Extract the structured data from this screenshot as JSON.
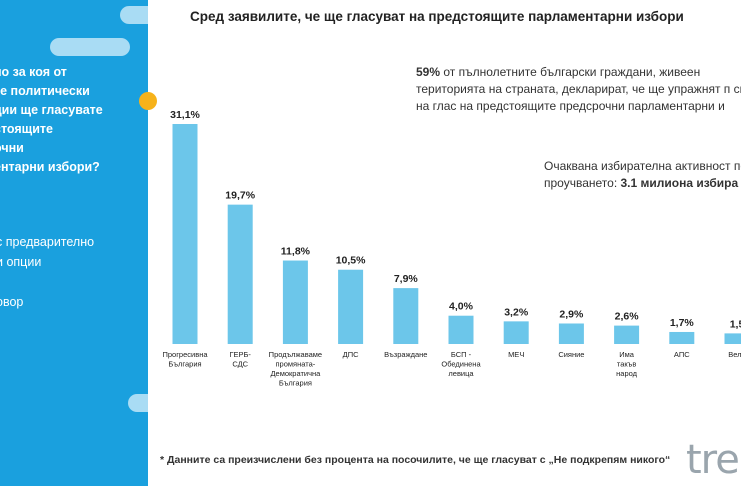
{
  "left_panel": {
    "question": "но за коя от\nте политически\nции ще гласувате\nстоящите\nочни\nентарни избори?",
    "option_1": "с предварително\nи опции",
    "option_2": "овор"
  },
  "title": "Сред заявилите, че ще гласуват на предстоящите парламентарни избори",
  "info": {
    "percent": "59%",
    "text": " от пълнолетните български граждани, живеен територията на страната, декларират, че ще упражнят п си на глас на предстоящите предсрочни парламентарни и"
  },
  "turnout": {
    "text": "Очаквана избирателна активност по от проучването: ",
    "bold": "3.1 милиона избира"
  },
  "footnote": "* Данните са преизчислени без процента на посочилите, че ще гласуват с „Не подкрепям никого“",
  "logo": "tre",
  "colors": {
    "panel": "#1aa0de",
    "bar": "#6cc6ea",
    "accent": "#f6b21a"
  },
  "chart_data": {
    "type": "bar",
    "title": "Сред заявилите, че ще гласуват на предстоящите парламентарни избори",
    "categories": [
      "Прогресивна\nБългария",
      "ГЕРБ-\nСДС",
      "Продължаваме\nпромяната-\nДемократична\nБългария",
      "ДПС",
      "Възраждане",
      "БСП -\nОбединена\nлевица",
      "МЕЧ",
      "Сияние",
      "Има\nтакъв\nнарод",
      "АПС",
      "Вели"
    ],
    "values": [
      31.1,
      19.7,
      11.8,
      10.5,
      7.9,
      4.0,
      3.2,
      2.9,
      2.6,
      1.7,
      1.5
    ],
    "value_labels": [
      "31,1%",
      "19,7%",
      "11,8%",
      "10,5%",
      "7,9%",
      "4,0%",
      "3,2%",
      "2,9%",
      "2,6%",
      "1,7%",
      "1,5"
    ],
    "xlabel": "",
    "ylabel": "",
    "ylim": [
      0,
      31.1
    ],
    "grid": false,
    "legend": "none"
  }
}
